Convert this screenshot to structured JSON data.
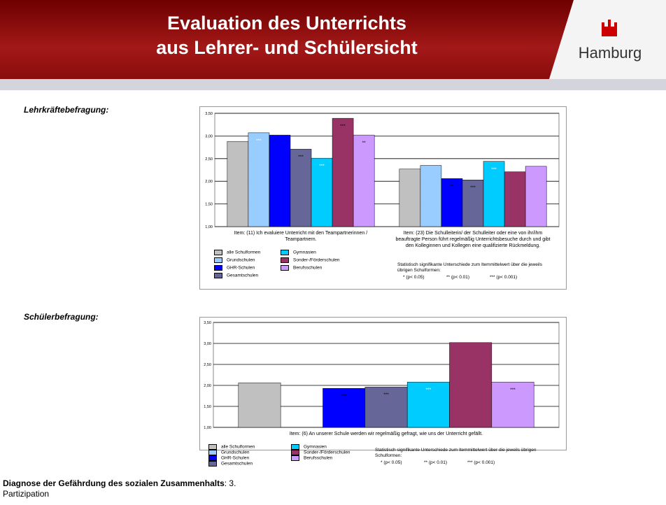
{
  "header": {
    "title_line1": "Evaluation des Unterrichts",
    "title_line2": "aus Lehrer- und Schülersicht",
    "logo": "Hamburg"
  },
  "sections": [
    "Lehrkräftebefragung:",
    "Schülerbefragung:"
  ],
  "footer": {
    "bold": "Diagnose der Gefährdung des sozialen Zusammenhalts",
    "rest": ": 3. Partizipation"
  },
  "chart_data": [
    {
      "type": "bar",
      "categories": [
        "Item: (11)  Ich evaluiere Unterricht mit den Teampartnerinnen / Teampartnern.",
        "Item:  (23) Die Schulleiterin/ der Schulleiter oder eine von ihr/ihm beauftragte Person führt regelmäßig Unterrichtsbesuche durch und gibt den Kolleginnen und Kollegen eine qualifizierte Rückmeldung."
      ],
      "series": [
        {
          "name": "alle Schulformen",
          "color": "#c0c0c0",
          "values": [
            2.88,
            2.27
          ],
          "significance": [
            null,
            null
          ]
        },
        {
          "name": "Grundschulen",
          "color": "#99ccff",
          "values": [
            3.07,
            2.35
          ],
          "significance": [
            "***",
            null
          ]
        },
        {
          "name": "GHR-Schulen",
          "color": "#0000ff",
          "values": [
            3.02,
            2.06
          ],
          "significance": [
            null,
            "**"
          ]
        },
        {
          "name": "Gesamtschulen",
          "color": "#666699",
          "values": [
            2.71,
            2.03
          ],
          "significance": [
            "***",
            "***"
          ]
        },
        {
          "name": "Gymnasien",
          "color": "#00ccff",
          "values": [
            2.51,
            2.44
          ],
          "significance": [
            "***",
            "***"
          ]
        },
        {
          "name": "Sonder-/Förderschulen",
          "color": "#993366",
          "values": [
            3.39,
            2.21
          ],
          "significance": [
            "***",
            null
          ]
        },
        {
          "name": "Berufsschulen",
          "color": "#cc99ff",
          "values": [
            3.02,
            2.33
          ],
          "significance": [
            "**",
            null
          ]
        }
      ],
      "ylim": [
        1,
        3.5
      ],
      "yticks": [
        {
          "value": 1,
          "label": "1,00"
        },
        {
          "value": 1.5,
          "label": "1,50"
        },
        {
          "value": 2,
          "label": "2,00"
        },
        {
          "value": 2.5,
          "label": "2,50"
        },
        {
          "value": 3,
          "label": "3,00"
        },
        {
          "value": 3.5,
          "label": "3,50"
        }
      ],
      "grid": true,
      "note": "Statistisch signifikante Unterschiede zum Itemmittelwert über die jeweils übrigen Schulformen:",
      "significance_legend": [
        "* (p< 0.05)",
        "** (p< 0.01)",
        "*** (p< 0.001)"
      ]
    },
    {
      "type": "bar",
      "categories": [
        "Item: (6) An unserer Schule werden wir regelmäßig gefragt, wie uns der Unterricht gefällt."
      ],
      "series": [
        {
          "name": "alle Schulformen",
          "color": "#c0c0c0",
          "values": [
            2.06
          ],
          "significance": [
            null
          ]
        },
        {
          "name": "Grundschulen",
          "color": "#99ccff",
          "values": [
            null
          ],
          "significance": [
            null
          ]
        },
        {
          "name": "GHR-Schulen",
          "color": "#0000ff",
          "values": [
            1.93
          ],
          "significance": [
            "***"
          ]
        },
        {
          "name": "Gesamtschulen",
          "color": "#666699",
          "values": [
            1.96
          ],
          "significance": [
            "***"
          ]
        },
        {
          "name": "Gymnasien",
          "color": "#00ccff",
          "values": [
            2.08
          ],
          "significance": [
            "***"
          ]
        },
        {
          "name": "Sonder-/Förderschulen",
          "color": "#993366",
          "values": [
            3.02
          ],
          "significance": [
            null
          ]
        },
        {
          "name": "Berufsschulen",
          "color": "#cc99ff",
          "values": [
            2.08
          ],
          "significance": [
            "***"
          ]
        }
      ],
      "ylim": [
        1,
        3.5
      ],
      "yticks": [
        {
          "value": 1,
          "label": "1,00"
        },
        {
          "value": 1.5,
          "label": "1,50"
        },
        {
          "value": 2,
          "label": "2,00"
        },
        {
          "value": 2.5,
          "label": "2,50"
        },
        {
          "value": 3,
          "label": "3,00"
        },
        {
          "value": 3.5,
          "label": "3,50"
        }
      ],
      "grid": true,
      "note": "Statistisch signifikante Unterschiede zum Itemmittelwert über die jeweils übrigen Schulformen:",
      "significance_legend": [
        "* (p< 0.05)",
        "** (p< 0.01)",
        "*** (p< 0.001)"
      ]
    }
  ]
}
